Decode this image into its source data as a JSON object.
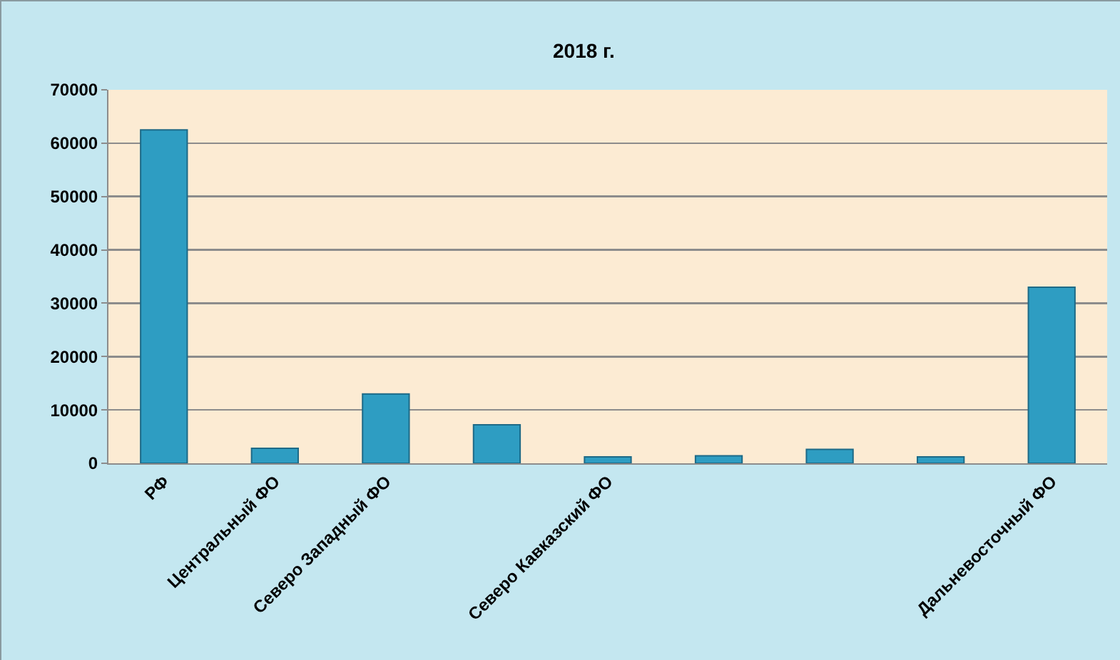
{
  "chart_data": {
    "type": "bar",
    "title": "2018 г.",
    "categories": [
      "РФ",
      "Центральный ФО",
      "Северо Западный ФО",
      null,
      "Северо Кавказский ФО",
      null,
      null,
      null,
      "Дальневосточный ФО"
    ],
    "values": [
      62500,
      2800,
      13000,
      7200,
      1200,
      1400,
      2600,
      1200,
      33000
    ],
    "color": "#2e9dc2",
    "ylim": [
      0,
      70000
    ],
    "yticks": [
      0,
      10000,
      20000,
      30000,
      40000,
      50000,
      60000,
      70000
    ],
    "grid": "y"
  }
}
